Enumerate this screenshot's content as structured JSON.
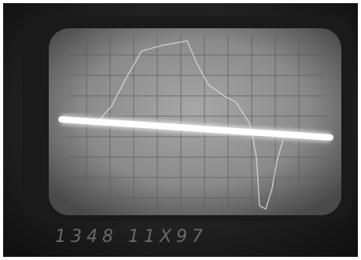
{
  "label": "1348 11X97"
}
